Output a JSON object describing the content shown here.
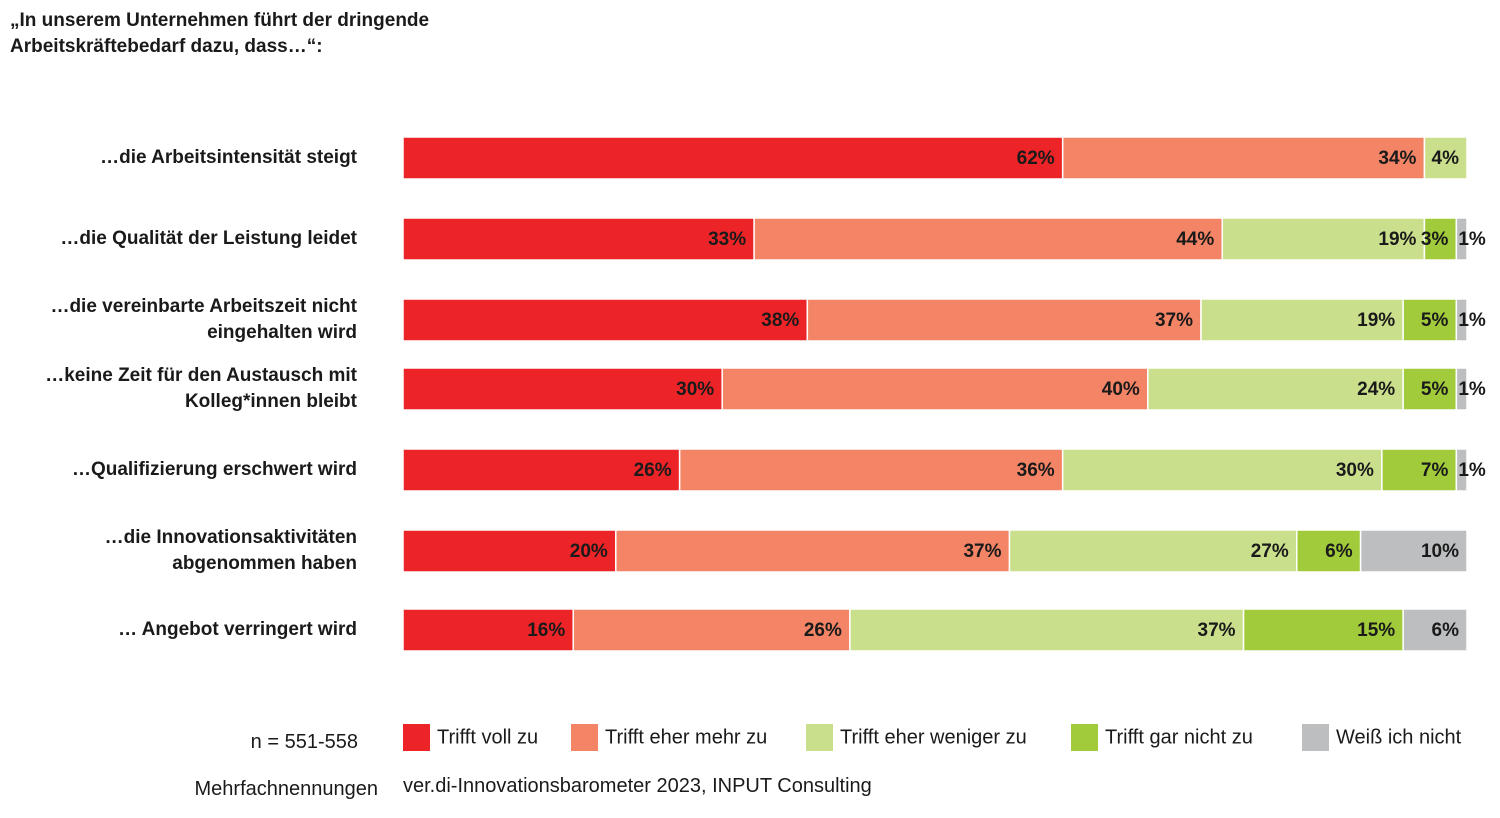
{
  "title_lines": [
    "„In unserem Unternehmen führt der dringende",
    "Arbeitskräftebedarf dazu, dass…“:"
  ],
  "footnotes": {
    "sample": "n = 551-558",
    "multiple": "Mehrfachnennungen",
    "source": "ver.di-Innovationsbarometer 2023, INPUT Consulting"
  },
  "colors": {
    "trifft_voll_zu": "#ec2427",
    "trifft_eher_mehr_zu": "#f48466",
    "trifft_eher_weniger_zu": "#cadf8c",
    "trifft_gar_nicht_zu": "#a1cb3a",
    "weiss_ich_nicht": "#bcbec0"
  },
  "chart_data": {
    "type": "bar",
    "orientation": "horizontal",
    "stacked": true,
    "unit": "%",
    "legend_placement": "bottom",
    "grid": false,
    "categories": [
      [
        "…die Arbeitsintensität steigt"
      ],
      [
        "…die Qualität der Leistung leidet"
      ],
      [
        "…die vereinbarte Arbeitszeit nicht",
        "eingehalten wird"
      ],
      [
        "…keine Zeit für den Austausch mit",
        "Kolleg*innen bleibt"
      ],
      [
        "…Qualifizierung erschwert wird"
      ],
      [
        "…die Innovationsaktivitäten",
        "abgenommen haben"
      ],
      [
        "… Angebot verringert wird"
      ]
    ],
    "series": [
      {
        "name": "Trifft voll zu",
        "color": "#ec2427",
        "values": [
          62,
          33,
          38,
          30,
          26,
          20,
          16
        ]
      },
      {
        "name": "Trifft eher mehr zu",
        "color": "#f48466",
        "values": [
          34,
          44,
          37,
          40,
          36,
          37,
          26
        ]
      },
      {
        "name": "Trifft eher weniger zu",
        "color": "#cadf8c",
        "values": [
          4,
          19,
          19,
          24,
          30,
          27,
          37
        ]
      },
      {
        "name": "Trifft gar nicht zu",
        "color": "#a1cb3a",
        "values": [
          0,
          3,
          5,
          5,
          7,
          6,
          15
        ]
      },
      {
        "name": "Weiß ich nicht",
        "color": "#bcbec0",
        "values": [
          0,
          1,
          1,
          1,
          1,
          10,
          6
        ]
      }
    ]
  }
}
